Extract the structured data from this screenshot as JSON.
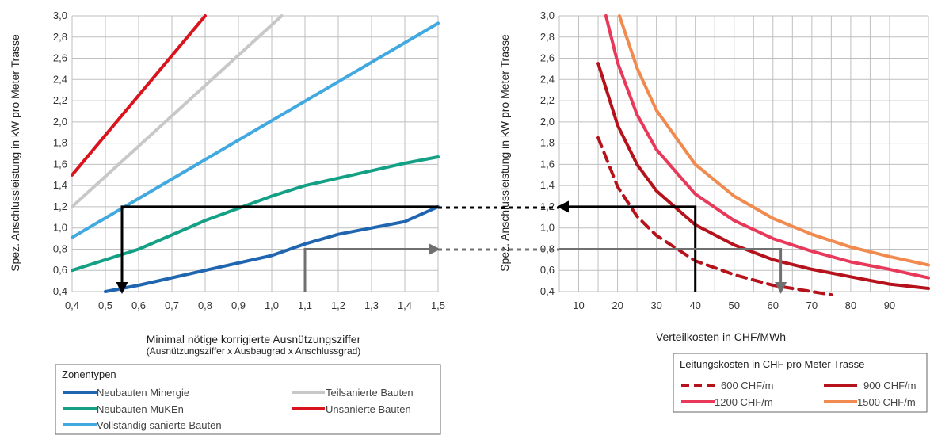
{
  "chart_data": [
    {
      "type": "line",
      "xlabel": "Minimal nötige korrigierte Ausnützungsziffer",
      "xlabel_sub": "(Ausnützungsziffer x Ausbaugrad x Anschlussgrad)",
      "ylabel": "Spez. Anschlussleistung in kW pro Meter Trasse",
      "xlim": [
        0.4,
        1.5
      ],
      "ylim": [
        0.4,
        3.0
      ],
      "x_ticks": [
        "0,4",
        "0,5",
        "0,6",
        "0,7",
        "0,8",
        "0,9",
        "1,0",
        "1,1",
        "1,2",
        "1,3",
        "1,4",
        "1,5"
      ],
      "y_ticks": [
        "0,4",
        "0,6",
        "0,8",
        "1,0",
        "1,2",
        "1,4",
        "1,6",
        "1,8",
        "2,0",
        "2,2",
        "2,4",
        "2,6",
        "2,8",
        "3,0"
      ],
      "grid": true,
      "legend": {
        "title": "Zonentypen",
        "placement": "bottom-left",
        "items": [
          "Neubauten Minergie",
          "Teilsanierte Bauten",
          "Neubauten MuKEn",
          "Unsanierte Bauten",
          "Vollständig sanierte Bauten"
        ]
      },
      "series": [
        {
          "name": "Neubauten Minergie",
          "color": "#2065b0",
          "points": [
            [
              0.5,
              0.4
            ],
            [
              0.6,
              0.46
            ],
            [
              0.8,
              0.6
            ],
            [
              1.0,
              0.74
            ],
            [
              1.1,
              0.85
            ],
            [
              1.2,
              0.94
            ],
            [
              1.3,
              1.0
            ],
            [
              1.4,
              1.06
            ],
            [
              1.5,
              1.2
            ]
          ]
        },
        {
          "name": "Neubauten MuKEn",
          "color": "#13a085",
          "points": [
            [
              0.4,
              0.6
            ],
            [
              0.6,
              0.8
            ],
            [
              0.8,
              1.07
            ],
            [
              1.0,
              1.3
            ],
            [
              1.1,
              1.4
            ],
            [
              1.2,
              1.47
            ],
            [
              1.3,
              1.54
            ],
            [
              1.4,
              1.61
            ],
            [
              1.5,
              1.67
            ]
          ]
        },
        {
          "name": "Vollständig sanierte Bauten",
          "color": "#41a9e0",
          "points": [
            [
              0.4,
              0.91
            ],
            [
              1.5,
              2.93
            ]
          ]
        },
        {
          "name": "Teilsanierte Bauten",
          "color": "#c8c8c8",
          "points": [
            [
              0.4,
              1.2
            ],
            [
              1.03,
              3.0
            ]
          ]
        },
        {
          "name": "Unsanierte Bauten",
          "color": "#d9141e",
          "points": [
            [
              0.4,
              1.5
            ],
            [
              0.8,
              3.0
            ]
          ]
        }
      ],
      "annotations": [
        {
          "color": "#000000",
          "path": [
            [
              1.5,
              1.2
            ],
            [
              0.55,
              1.2
            ],
            [
              0.55,
              0.4
            ]
          ]
        },
        {
          "color": "#707070",
          "path": [
            [
              1.1,
              0.4
            ],
            [
              1.1,
              0.8
            ],
            [
              1.5,
              0.8
            ]
          ]
        }
      ]
    },
    {
      "type": "line",
      "xlabel": "Verteilkosten in CHF/MWh",
      "ylabel": "Spez. Anschlussleistung in kW pro Meter Trasse",
      "xlim": [
        5,
        100
      ],
      "ylim": [
        0.4,
        3.0
      ],
      "x_ticks": [
        "10",
        "20",
        "30",
        "40",
        "50",
        "60",
        "70",
        "80",
        "90"
      ],
      "y_ticks": [
        "0,4",
        "0,6",
        "0,8",
        "1,0",
        "1,2",
        "1,4",
        "1,6",
        "1,8",
        "2,0",
        "2,2",
        "2,4",
        "2,6",
        "2,8",
        "3,0"
      ],
      "grid": true,
      "legend": {
        "title": "Leitungskosten in CHF pro Meter Trasse",
        "placement": "bottom-right",
        "items": [
          "600 CHF/m",
          "900 CHF/m",
          "1200 CHF/m",
          "1500 CHF/m"
        ]
      },
      "series": [
        {
          "name": "600 CHF/m",
          "color": "#b5121b",
          "dashed": true,
          "points": [
            [
              15,
              1.85
            ],
            [
              20,
              1.39
            ],
            [
              25,
              1.11
            ],
            [
              30,
              0.93
            ],
            [
              40,
              0.69
            ],
            [
              50,
              0.56
            ],
            [
              60,
              0.46
            ],
            [
              70,
              0.4
            ],
            [
              75,
              0.37
            ]
          ]
        },
        {
          "name": "900 CHF/m",
          "color": "#b5121b",
          "points": [
            [
              15,
              2.55
            ],
            [
              20,
              1.97
            ],
            [
              25,
              1.6
            ],
            [
              30,
              1.35
            ],
            [
              40,
              1.03
            ],
            [
              50,
              0.84
            ],
            [
              60,
              0.7
            ],
            [
              70,
              0.61
            ],
            [
              80,
              0.54
            ],
            [
              90,
              0.47
            ],
            [
              100,
              0.43
            ]
          ]
        },
        {
          "name": "1200 CHF/m",
          "color": "#e8395a",
          "points": [
            [
              17,
              3.0
            ],
            [
              20,
              2.56
            ],
            [
              25,
              2.07
            ],
            [
              30,
              1.74
            ],
            [
              40,
              1.32
            ],
            [
              50,
              1.07
            ],
            [
              60,
              0.9
            ],
            [
              70,
              0.78
            ],
            [
              80,
              0.68
            ],
            [
              90,
              0.61
            ],
            [
              100,
              0.53
            ]
          ]
        },
        {
          "name": "1500 CHF/m",
          "color": "#f08a4f",
          "points": [
            [
              20.5,
              3.0
            ],
            [
              25,
              2.51
            ],
            [
              30,
              2.11
            ],
            [
              40,
              1.6
            ],
            [
              50,
              1.3
            ],
            [
              60,
              1.09
            ],
            [
              70,
              0.94
            ],
            [
              80,
              0.82
            ],
            [
              90,
              0.73
            ],
            [
              100,
              0.65
            ]
          ]
        }
      ],
      "annotations": [
        {
          "color": "#000000",
          "path": [
            [
              40,
              0.4
            ],
            [
              40,
              1.2
            ],
            [
              5,
              1.2
            ]
          ]
        },
        {
          "color": "#707070",
          "path": [
            [
              5,
              0.8
            ],
            [
              62,
              0.8
            ],
            [
              62,
              0.4
            ]
          ]
        }
      ]
    }
  ]
}
